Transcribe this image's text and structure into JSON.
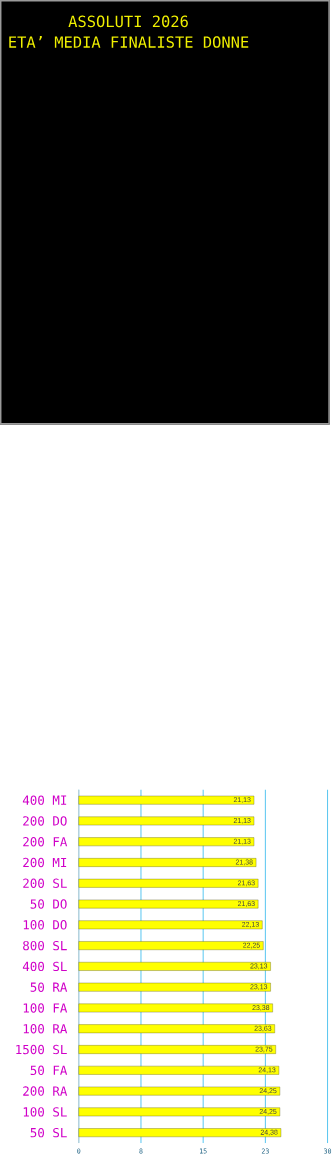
{
  "chart_data": {
    "type": "bar",
    "orientation": "horizontal",
    "title": "ASSOLUTI 2026",
    "subtitle": "ETA’ MEDIA FINALISTE DONNE",
    "categories": [
      "400 MI",
      "200 DO",
      "200 FA",
      "200 MI",
      "200 SL",
      "50 DO",
      "100 DO",
      "800 SL",
      "400 SL",
      "50 RA",
      "100 FA",
      "100 RA",
      "1500 SL",
      "50 FA",
      "200 RA",
      "100 SL",
      "50 SL"
    ],
    "values": [
      21.13,
      21.13,
      21.13,
      21.38,
      21.63,
      21.63,
      22.13,
      22.25,
      23.13,
      23.13,
      23.38,
      23.63,
      23.75,
      24.13,
      24.25,
      24.25,
      24.38
    ],
    "value_labels": [
      "21,13",
      "21,13",
      "21,13",
      "21,38",
      "21,63",
      "21,63",
      "22,13",
      "22,25",
      "23,13",
      "23,13",
      "23,38",
      "23,63",
      "23,75",
      "24,13",
      "24,25",
      "24,25",
      "24,38"
    ],
    "color": "#ffff00",
    "xlim": [
      0,
      30
    ],
    "xticks": [
      0,
      {
        "value": 7.5,
        "label": "8"
      },
      15,
      {
        "value": 22.5,
        "label": "23"
      },
      30
    ],
    "grid": "x"
  }
}
